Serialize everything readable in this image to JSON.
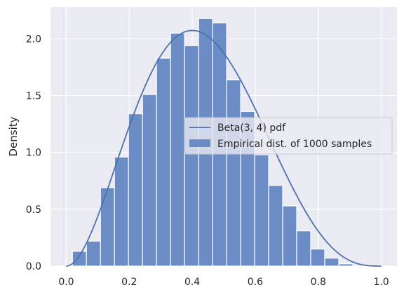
{
  "colors": {
    "plot_background": "#eaeaf2",
    "grid": "#ffffff",
    "bar_fill": "#6b8cc4",
    "bar_edge": "#ffffff",
    "line": "#4c72b0",
    "legend_background": "#eaeaf2",
    "legend_border": "#cccccc"
  },
  "chart_data": {
    "type": "bar",
    "title": "",
    "xlabel": "",
    "ylabel": "Density",
    "xlim": [
      -0.05,
      1.05
    ],
    "ylim": [
      0,
      2.28
    ],
    "xticks": [
      0.0,
      0.2,
      0.4,
      0.6,
      0.8,
      1.0
    ],
    "xtick_labels": [
      "0.0",
      "0.2",
      "0.4",
      "0.6",
      "0.8",
      "1.0"
    ],
    "yticks": [
      0.0,
      0.5,
      1.0,
      1.5,
      2.0
    ],
    "ytick_labels": [
      "0.0",
      "0.5",
      "1.0",
      "1.5",
      "2.0"
    ],
    "grid": true,
    "legend_position": "center-right",
    "bin_edges": [
      0.0196,
      0.0641,
      0.1086,
      0.1531,
      0.1976,
      0.2421,
      0.2866,
      0.3311,
      0.3756,
      0.4201,
      0.4646,
      0.5091,
      0.5536,
      0.5981,
      0.6426,
      0.6871,
      0.7316,
      0.7761,
      0.8206,
      0.8651,
      0.9096
    ],
    "densities": [
      0.13,
      0.22,
      0.69,
      0.96,
      1.34,
      1.51,
      1.83,
      2.05,
      1.94,
      2.18,
      2.14,
      1.64,
      1.36,
      0.98,
      0.71,
      0.53,
      0.31,
      0.15,
      0.07,
      0.02
    ],
    "series": [
      {
        "name": "Beta(3, 4) pdf",
        "kind": "line",
        "distribution": "beta",
        "alpha": 3,
        "beta": 4
      },
      {
        "name": "Empirical dist. of 1000 samples",
        "kind": "histogram"
      }
    ]
  }
}
